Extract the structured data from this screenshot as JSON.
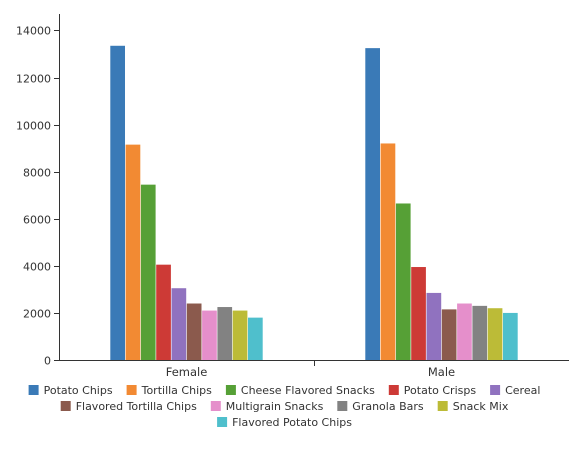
{
  "chart_data": {
    "type": "bar",
    "categories": [
      "Female",
      "Male"
    ],
    "series": [
      {
        "name": "Potato Chips",
        "color": "#3a7ab7",
        "values": [
          13350,
          13250
        ]
      },
      {
        "name": "Tortilla Chips",
        "color": "#f28a33",
        "values": [
          9150,
          9200
        ]
      },
      {
        "name": "Cheese Flavored Snacks",
        "color": "#56a036",
        "values": [
          7450,
          6650
        ]
      },
      {
        "name": "Potato Crisps",
        "color": "#cd3a36",
        "values": [
          4050,
          3950
        ]
      },
      {
        "name": "Cereal",
        "color": "#9072bf",
        "values": [
          3050,
          2850
        ]
      },
      {
        "name": "Flavored Tortilla Chips",
        "color": "#8b5a4d",
        "values": [
          2400,
          2150
        ]
      },
      {
        "name": "Multigrain Snacks",
        "color": "#e58fcb",
        "values": [
          2100,
          2400
        ]
      },
      {
        "name": "Granola Bars",
        "color": "#828282",
        "values": [
          2250,
          2300
        ]
      },
      {
        "name": "Snack Mix",
        "color": "#bcbb37",
        "values": [
          2100,
          2200
        ]
      },
      {
        "name": "Flavored Potato Chips",
        "color": "#4fbfcc",
        "values": [
          1800,
          2000
        ]
      }
    ],
    "yticks": [
      "0",
      "2000",
      "4000",
      "6000",
      "8000",
      "10000",
      "12000",
      "14000"
    ],
    "ylim": [
      0,
      14700
    ],
    "title": "",
    "xlabel": "",
    "ylabel": "",
    "legend_position": "bottom",
    "grid": false
  }
}
